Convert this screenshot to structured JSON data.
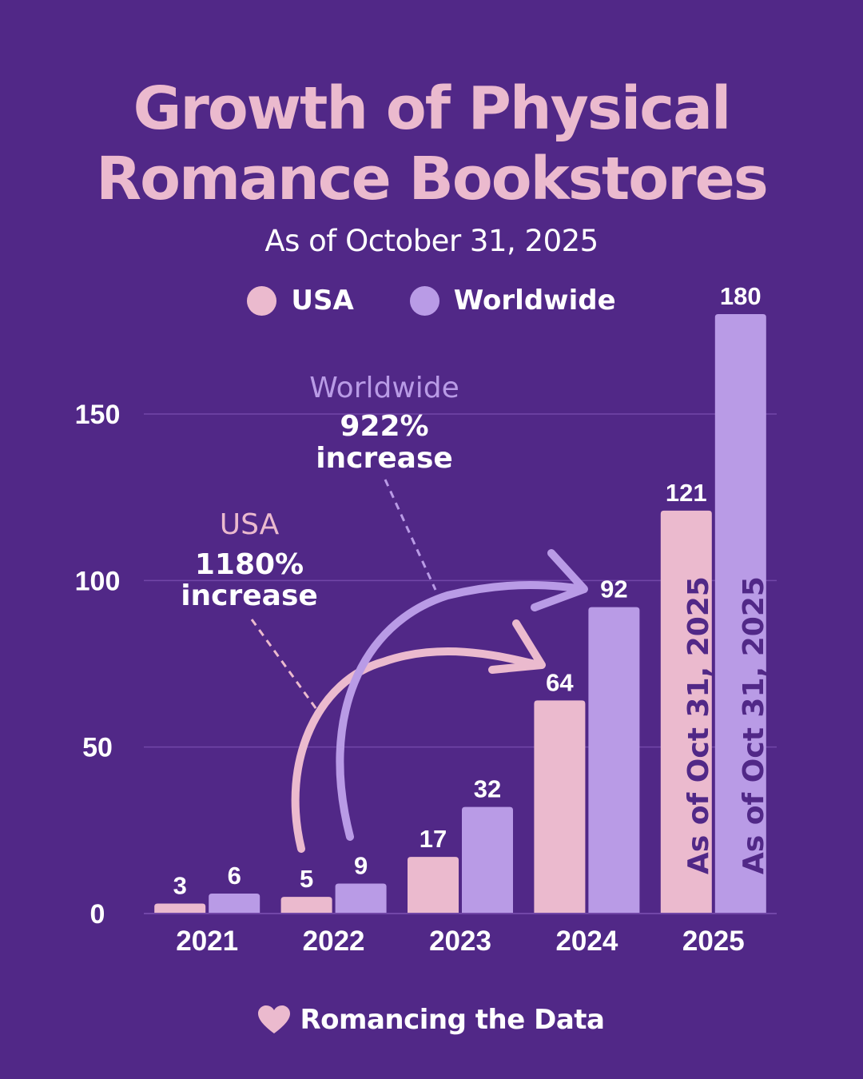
{
  "header": {
    "title_line1": "Growth of Physical",
    "title_line2": "Romance Bookstores",
    "subtitle": "As of October 31, 2025"
  },
  "legend": [
    {
      "label": "USA",
      "color": "#EBBACE"
    },
    {
      "label": "Worldwide",
      "color": "#B99BE6"
    }
  ],
  "chart_data": {
    "type": "bar",
    "categories": [
      "2021",
      "2022",
      "2023",
      "2024",
      "2025"
    ],
    "series": [
      {
        "name": "USA",
        "values": [
          3,
          5,
          17,
          64,
          121
        ],
        "color": "#EBBACE"
      },
      {
        "name": "Worldwide",
        "values": [
          6,
          9,
          32,
          92,
          180
        ],
        "color": "#B99BE6"
      }
    ],
    "yticks": [
      0,
      50,
      100,
      150
    ],
    "ylim": [
      0,
      180
    ],
    "grid": true,
    "legend_position": "top-center",
    "bar_notes": [
      "As of Oct 31, 2025",
      "As of Oct 31, 2025"
    ],
    "annotations": {
      "worldwide": {
        "label": "Worldwide",
        "value": "922%",
        "text": "increase",
        "color": "#B99BE6"
      },
      "usa": {
        "label": "USA",
        "value": "1180%",
        "text": "increase",
        "color": "#EBBACE"
      }
    }
  },
  "footer": {
    "text": "Romancing the Data",
    "icon": "heart-icon",
    "icon_color": "#EBBACE"
  }
}
